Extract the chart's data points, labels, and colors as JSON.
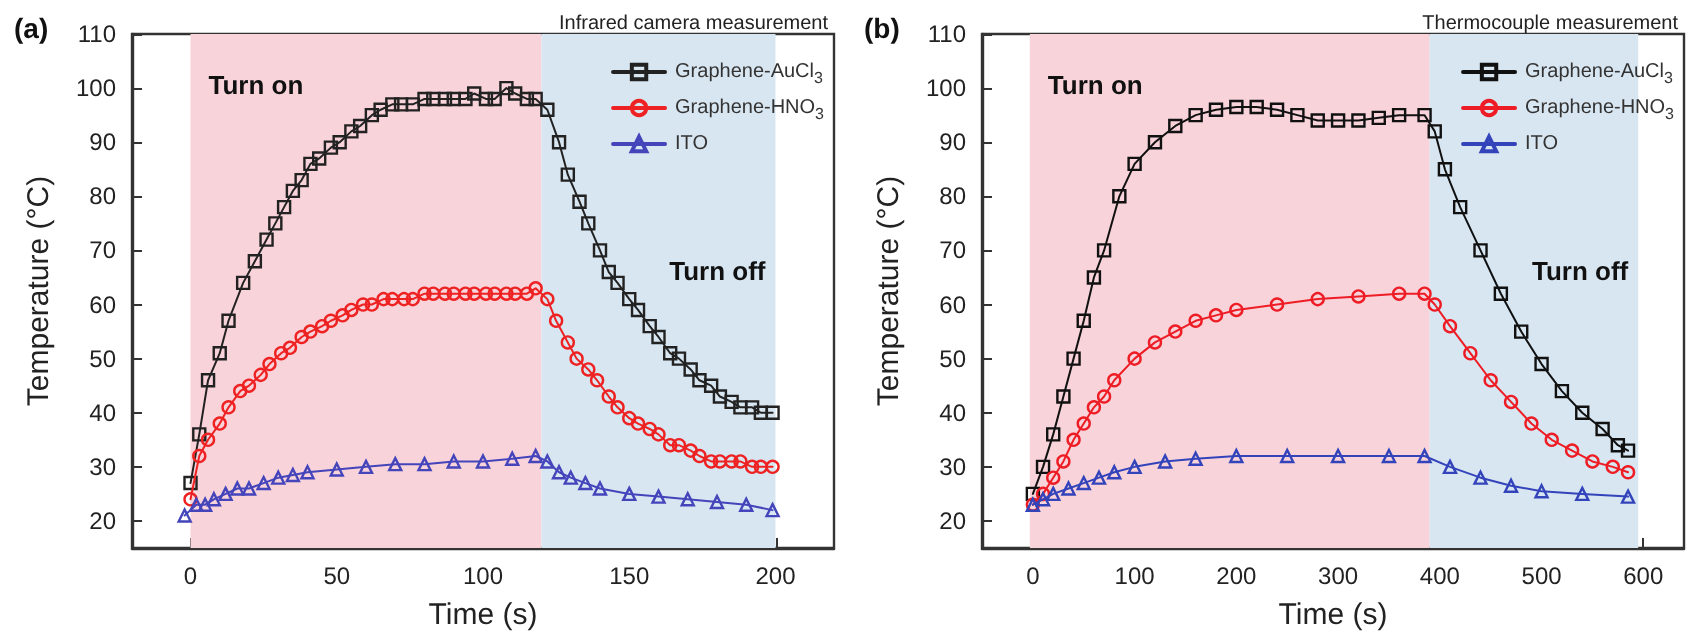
{
  "chart_data": [
    {
      "type": "line",
      "title": "(a)",
      "subtitle": "Infrared camera measurement",
      "xlabel": "Time (s)",
      "ylabel": "Temperature (°C)",
      "xlim": [
        -20,
        220
      ],
      "xticks": [
        0,
        50,
        100,
        150,
        200
      ],
      "ylim": [
        15,
        110
      ],
      "yticks": [
        20,
        30,
        40,
        50,
        60,
        70,
        80,
        90,
        100,
        110
      ],
      "grid": false,
      "legend": "top right",
      "line_style": "solid",
      "bands": [
        {
          "axis": "x",
          "from": 0,
          "to": 120,
          "label": "Turn on",
          "color": "#f8d3da"
        },
        {
          "axis": "x",
          "from": 120,
          "to": 200,
          "label": "Turn off",
          "color": "#d8e6f1"
        }
      ],
      "series": [
        {
          "name": "Graphene-AuCl$_{3}$",
          "color": "#222222",
          "marker": "square",
          "x": [
            0,
            3,
            6,
            10,
            13,
            18,
            22,
            26,
            29,
            32,
            35,
            38,
            41,
            44,
            48,
            51,
            55,
            58,
            62,
            65,
            69,
            72,
            76,
            80,
            83,
            87,
            90,
            94,
            97,
            101,
            104,
            108,
            111,
            115,
            118,
            122,
            126,
            129,
            133,
            136,
            140,
            143,
            146,
            150,
            153,
            157,
            160,
            164,
            167,
            171,
            174,
            178,
            181,
            185,
            188,
            192,
            195,
            199
          ],
          "values": [
            27,
            36,
            46,
            51,
            57,
            64,
            68,
            72,
            75,
            78,
            81,
            83,
            86,
            87,
            89,
            90,
            92,
            93,
            95,
            96,
            97,
            97,
            97,
            98,
            98,
            98,
            98,
            98,
            99,
            98,
            98,
            100,
            99,
            98,
            98,
            96,
            90,
            84,
            79,
            75,
            70,
            66,
            64,
            61,
            59,
            56,
            54,
            51,
            50,
            48,
            46,
            45,
            43,
            42,
            41,
            41,
            40,
            40
          ]
        },
        {
          "name": "Graphene-HNO$_{3}$",
          "color": "#ee2222",
          "marker": "circle",
          "x": [
            0,
            3,
            6,
            10,
            13,
            17,
            20,
            24,
            27,
            31,
            34,
            38,
            41,
            45,
            48,
            52,
            55,
            59,
            62,
            66,
            69,
            73,
            76,
            80,
            83,
            87,
            90,
            94,
            97,
            101,
            104,
            108,
            111,
            115,
            118,
            122,
            125,
            129,
            132,
            136,
            139,
            143,
            146,
            150,
            153,
            157,
            160,
            164,
            167,
            171,
            174,
            178,
            181,
            185,
            188,
            192,
            195,
            199
          ],
          "values": [
            24,
            32,
            35,
            38,
            41,
            44,
            45,
            47,
            49,
            51,
            52,
            54,
            55,
            56,
            57,
            58,
            59,
            60,
            60,
            61,
            61,
            61,
            61,
            62,
            62,
            62,
            62,
            62,
            62,
            62,
            62,
            62,
            62,
            62,
            63,
            61,
            57,
            53,
            50,
            48,
            46,
            43,
            41,
            39,
            38,
            37,
            36,
            34,
            34,
            33,
            32,
            31,
            31,
            31,
            31,
            30,
            30,
            30
          ]
        },
        {
          "name": "ITO",
          "color": "#4444bb",
          "marker": "triangle",
          "x": [
            -2,
            2,
            5,
            8,
            12,
            16,
            20,
            25,
            30,
            35,
            40,
            50,
            60,
            70,
            80,
            90,
            100,
            110,
            118,
            122,
            126,
            130,
            135,
            140,
            150,
            160,
            170,
            180,
            190,
            199
          ],
          "values": [
            21,
            23,
            23,
            24,
            25,
            26,
            26,
            27,
            28,
            28.5,
            29,
            29.5,
            30,
            30.5,
            30.5,
            31,
            31,
            31.5,
            32,
            31,
            29,
            28,
            27,
            26,
            25,
            24.5,
            24,
            23.5,
            23,
            22
          ]
        }
      ]
    },
    {
      "type": "line",
      "title": "(b)",
      "subtitle": "Thermocouple measurement",
      "xlabel": "Time (s)",
      "ylabel": "Temperature (°C)",
      "xlim": [
        -50,
        640
      ],
      "xticks": [
        0,
        100,
        200,
        300,
        400,
        500,
        600
      ],
      "ylim": [
        15,
        110
      ],
      "yticks": [
        20,
        30,
        40,
        50,
        60,
        70,
        80,
        90,
        100,
        110
      ],
      "grid": false,
      "legend": "top right",
      "line_style": "solid",
      "bands": [
        {
          "axis": "x",
          "from": -3,
          "to": 390,
          "label": "Turn on",
          "color": "#f8d3da"
        },
        {
          "axis": "x",
          "from": 390,
          "to": 595,
          "label": "Turn off",
          "color": "#d8e6f1"
        }
      ],
      "series": [
        {
          "name": "Graphene-AuCl$_{3}$",
          "color": "#111111",
          "marker": "square",
          "x": [
            0,
            10,
            20,
            30,
            40,
            50,
            60,
            70,
            85,
            100,
            120,
            140,
            160,
            180,
            200,
            220,
            240,
            260,
            280,
            300,
            320,
            340,
            360,
            385,
            395,
            405,
            420,
            440,
            460,
            480,
            500,
            520,
            540,
            560,
            575,
            585
          ],
          "values": [
            25,
            30,
            36,
            43,
            50,
            57,
            65,
            70,
            80,
            86,
            90,
            93,
            95,
            96,
            96.5,
            96.5,
            96,
            95,
            94,
            94,
            94,
            94.5,
            95,
            95,
            92,
            85,
            78,
            70,
            62,
            55,
            49,
            44,
            40,
            37,
            34,
            33
          ]
        },
        {
          "name": "Graphene-HNO$_{3}$",
          "color": "#ee1c24",
          "marker": "circle",
          "x": [
            0,
            10,
            20,
            30,
            40,
            50,
            60,
            70,
            80,
            100,
            120,
            140,
            160,
            180,
            200,
            240,
            280,
            320,
            360,
            385,
            395,
            410,
            430,
            450,
            470,
            490,
            510,
            530,
            550,
            570,
            585
          ],
          "values": [
            23,
            25,
            28,
            31,
            35,
            38,
            41,
            43,
            46,
            50,
            53,
            55,
            57,
            58,
            59,
            60,
            61,
            61.5,
            62,
            62,
            60,
            56,
            51,
            46,
            42,
            38,
            35,
            33,
            31,
            30,
            29
          ]
        },
        {
          "name": "ITO",
          "color": "#3344bb",
          "marker": "triangle",
          "x": [
            0,
            10,
            20,
            35,
            50,
            65,
            80,
            100,
            130,
            160,
            200,
            250,
            300,
            350,
            385,
            410,
            440,
            470,
            500,
            540,
            585
          ],
          "values": [
            23,
            24,
            25,
            26,
            27,
            28,
            29,
            30,
            31,
            31.5,
            32,
            32,
            32,
            32,
            32,
            30,
            28,
            26.5,
            25.5,
            25,
            24.5
          ]
        }
      ]
    }
  ]
}
